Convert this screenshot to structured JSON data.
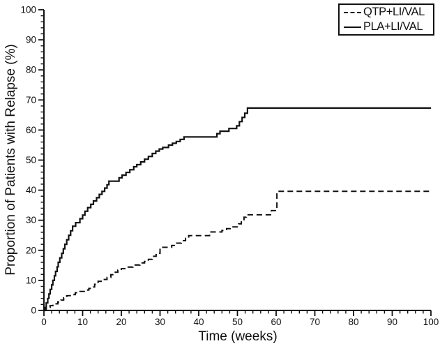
{
  "figure": {
    "background": "#ffffff",
    "line_color": "#111111"
  },
  "chart_data": {
    "type": "line",
    "subtype": "kaplan-meier-step",
    "title": "",
    "xlabel": "Time (weeks)",
    "ylabel": "Proportion of Patients with Relapse (%)",
    "xlim": [
      0,
      100
    ],
    "ylim": [
      0,
      100
    ],
    "x_ticks": [
      0,
      10,
      20,
      30,
      40,
      50,
      60,
      70,
      80,
      90,
      100
    ],
    "y_ticks": [
      0,
      10,
      20,
      30,
      40,
      50,
      60,
      70,
      80,
      90,
      100
    ],
    "x_minor_step": 2,
    "y_minor_step": 2,
    "grid": false,
    "legend": {
      "position": "top-right",
      "entries": [
        {
          "label": "QTP+LI/VAL",
          "style": "dashed"
        },
        {
          "label": "PLA+LI/VAL",
          "style": "solid"
        }
      ]
    },
    "series": [
      {
        "name": "QTP+LI/VAL",
        "style": "dashed",
        "points": [
          [
            0,
            0
          ],
          [
            0.6,
            1
          ],
          [
            1.6,
            1.6
          ],
          [
            2.3,
            2.2
          ],
          [
            3.6,
            2.8
          ],
          [
            4.4,
            3.4
          ],
          [
            5.1,
            4.2
          ],
          [
            5.9,
            4.9
          ],
          [
            6.8,
            5.3
          ],
          [
            8.1,
            5.9
          ],
          [
            9,
            6.3
          ],
          [
            10.6,
            6.8
          ],
          [
            11.6,
            7.3
          ],
          [
            12.3,
            7.8
          ],
          [
            13.1,
            8.7
          ],
          [
            14,
            9.7
          ],
          [
            15.1,
            10.3
          ],
          [
            16.3,
            11
          ],
          [
            17.3,
            11.9
          ],
          [
            18.1,
            12.7
          ],
          [
            19.1,
            13.4
          ],
          [
            20,
            13.9
          ],
          [
            21.6,
            14.4
          ],
          [
            23,
            15.1
          ],
          [
            24.8,
            15.8
          ],
          [
            26,
            16.3
          ],
          [
            27,
            17
          ],
          [
            28,
            18
          ],
          [
            29,
            19
          ],
          [
            30,
            20.3
          ],
          [
            30.4,
            21
          ],
          [
            33,
            21.6
          ],
          [
            34,
            22.4
          ],
          [
            35.5,
            23.2
          ],
          [
            36.6,
            24
          ],
          [
            37.4,
            24.9
          ],
          [
            42.8,
            26.1
          ],
          [
            46,
            26.6
          ],
          [
            47.2,
            27.2
          ],
          [
            48.1,
            27.8
          ],
          [
            50.3,
            28.8
          ],
          [
            51,
            29.9
          ],
          [
            51.7,
            31
          ],
          [
            52.3,
            31.8
          ],
          [
            58.8,
            33.2
          ],
          [
            60.2,
            39.6
          ],
          [
            100,
            39.6
          ]
        ]
      },
      {
        "name": "PLA+LI/VAL",
        "style": "solid",
        "points": [
          [
            0,
            0
          ],
          [
            0.3,
            1
          ],
          [
            0.6,
            2.5
          ],
          [
            1,
            4
          ],
          [
            1.3,
            5.5
          ],
          [
            1.6,
            7
          ],
          [
            2,
            8.5
          ],
          [
            2.3,
            10
          ],
          [
            2.7,
            11.5
          ],
          [
            3,
            13
          ],
          [
            3.4,
            14.5
          ],
          [
            3.7,
            16
          ],
          [
            4.1,
            17.5
          ],
          [
            4.6,
            19
          ],
          [
            5,
            20.5
          ],
          [
            5.4,
            22
          ],
          [
            5.9,
            23.5
          ],
          [
            6.4,
            25
          ],
          [
            6.9,
            26.5
          ],
          [
            7.4,
            28
          ],
          [
            8.2,
            29.2
          ],
          [
            9.3,
            30.5
          ],
          [
            10,
            31.7
          ],
          [
            10.6,
            33
          ],
          [
            11.3,
            34.2
          ],
          [
            12.1,
            35.3
          ],
          [
            12.8,
            36.4
          ],
          [
            13.6,
            37.5
          ],
          [
            14.3,
            38.6
          ],
          [
            15,
            39.6
          ],
          [
            15.7,
            40.7
          ],
          [
            16.3,
            41.8
          ],
          [
            16.8,
            43
          ],
          [
            19.4,
            44.1
          ],
          [
            20.2,
            45
          ],
          [
            21.2,
            45.9
          ],
          [
            22.2,
            46.8
          ],
          [
            23.2,
            47.8
          ],
          [
            24,
            48.5
          ],
          [
            25,
            49.4
          ],
          [
            26,
            50.3
          ],
          [
            27,
            51.2
          ],
          [
            28,
            52.2
          ],
          [
            28.9,
            53
          ],
          [
            29.8,
            53.7
          ],
          [
            30.7,
            54.2
          ],
          [
            32.2,
            55
          ],
          [
            33.2,
            55.6
          ],
          [
            34.2,
            56.2
          ],
          [
            35.2,
            56.9
          ],
          [
            36.2,
            57.7
          ],
          [
            44.7,
            58.8
          ],
          [
            45.5,
            59.6
          ],
          [
            47.8,
            60.5
          ],
          [
            49.8,
            61.4
          ],
          [
            50.5,
            62.8
          ],
          [
            51.2,
            64.2
          ],
          [
            51.9,
            65.6
          ],
          [
            52.6,
            67.3
          ],
          [
            100,
            67.3
          ]
        ]
      }
    ]
  }
}
